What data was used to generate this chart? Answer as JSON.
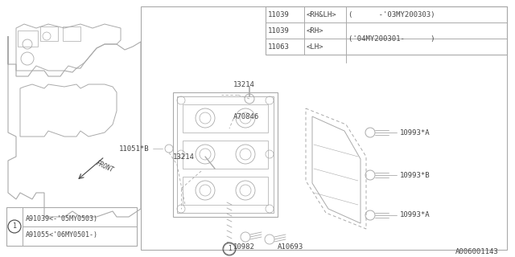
{
  "bg_color": "#ffffff",
  "line_color": "#aaaaaa",
  "text_color": "#444444",
  "footer_text": "A006001143",
  "table_rows": [
    [
      "11039",
      "<RH&LH>",
      "(      -'03MY200303)"
    ],
    [
      "11039",
      "<RH>",
      "('04MY200301-      )"
    ],
    [
      "11063",
      "<LH>",
      ""
    ]
  ],
  "legend_rows": [
    "A91039<-'05MY0503)",
    "A91055<'06MY0501-)"
  ]
}
